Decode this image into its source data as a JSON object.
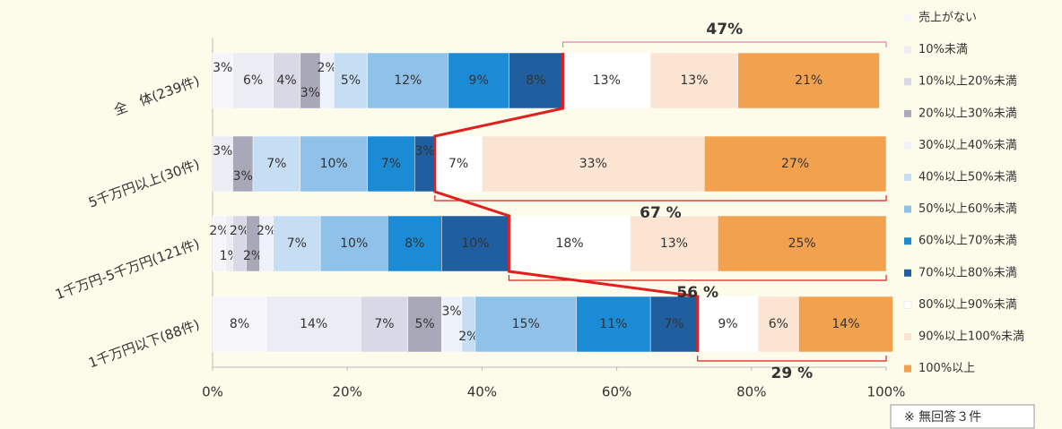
{
  "chart_data": {
    "type": "stacked_bar_horizontal",
    "categories": [
      "全　体(239件)",
      "5千万円以上(30件)",
      "1千万円-5千万円(121件)",
      "1千万円以下(88件)"
    ],
    "series": [
      {
        "name": "売上がない",
        "color": "#f6f6fa",
        "values": [
          3,
          0,
          2,
          8
        ],
        "value_labels": [
          "3%",
          null,
          "2%",
          "8%"
        ]
      },
      {
        "name": "10%未満",
        "color": "#ececf4",
        "values": [
          6,
          3,
          1,
          14
        ],
        "value_labels": [
          "6%",
          "3%",
          "1%",
          "14%"
        ]
      },
      {
        "name": "10%以上20%未満",
        "color": "#d8d8e6",
        "values": [
          4,
          0,
          2,
          7
        ],
        "value_labels": [
          "4%",
          null,
          "2%",
          "7%"
        ]
      },
      {
        "name": "20%以上30%未満",
        "color": "#a8a8b8",
        "values": [
          3,
          3,
          2,
          5
        ],
        "value_labels": [
          "3%",
          "3%",
          "2%",
          "5%"
        ]
      },
      {
        "name": "30%以上40%未満",
        "color": "#eef3fb",
        "values": [
          2,
          0,
          2,
          3
        ],
        "value_labels": [
          "2%",
          null,
          "2%",
          "3%"
        ]
      },
      {
        "name": "40%以上50%未満",
        "color": "#c6def4",
        "values": [
          5,
          7,
          7,
          2
        ],
        "value_labels": [
          "5%",
          "7%",
          "7%",
          "2%"
        ]
      },
      {
        "name": "50%以上60%未満",
        "color": "#8fc1e9",
        "values": [
          12,
          10,
          10,
          15
        ],
        "value_labels": [
          "12%",
          "10%",
          "10%",
          "15%"
        ]
      },
      {
        "name": "60%以上70%未満",
        "color": "#1c8bd5",
        "values": [
          9,
          7,
          8,
          11
        ],
        "value_labels": [
          "9%",
          "7%",
          "8%",
          "11%"
        ]
      },
      {
        "name": "70%以上80%未満",
        "color": "#1f5f9f",
        "values": [
          8,
          3,
          10,
          7
        ],
        "value_labels": [
          "8%",
          "3%",
          "10%",
          "7%"
        ]
      },
      {
        "name": "80%以上90%未満",
        "color": "#ffffff",
        "values": [
          13,
          7,
          18,
          9
        ],
        "value_labels": [
          "13%",
          "7%",
          "18%",
          "9%"
        ]
      },
      {
        "name": "90%以上100%未満",
        "color": "#fbe4d2",
        "values": [
          13,
          33,
          13,
          6
        ],
        "value_labels": [
          "13%",
          "33%",
          "13%",
          "6%"
        ]
      },
      {
        "name": "100%以上",
        "color": "#f2a24f",
        "values": [
          21,
          27,
          25,
          14
        ],
        "value_labels": [
          "21%",
          "27%",
          "25%",
          "14%"
        ]
      }
    ],
    "xlim": [
      0,
      100
    ],
    "xticks": [
      {
        "value": 0,
        "label": "0%"
      },
      {
        "value": 20,
        "label": "20%"
      },
      {
        "value": 40,
        "label": "40%"
      },
      {
        "value": 60,
        "label": "60%"
      },
      {
        "value": 80,
        "label": "80%"
      },
      {
        "value": 100,
        "label": "100%"
      }
    ],
    "annotations": [
      "47%",
      "67 %",
      "56 %",
      "29 %"
    ],
    "note": "※ 無回答３件"
  }
}
